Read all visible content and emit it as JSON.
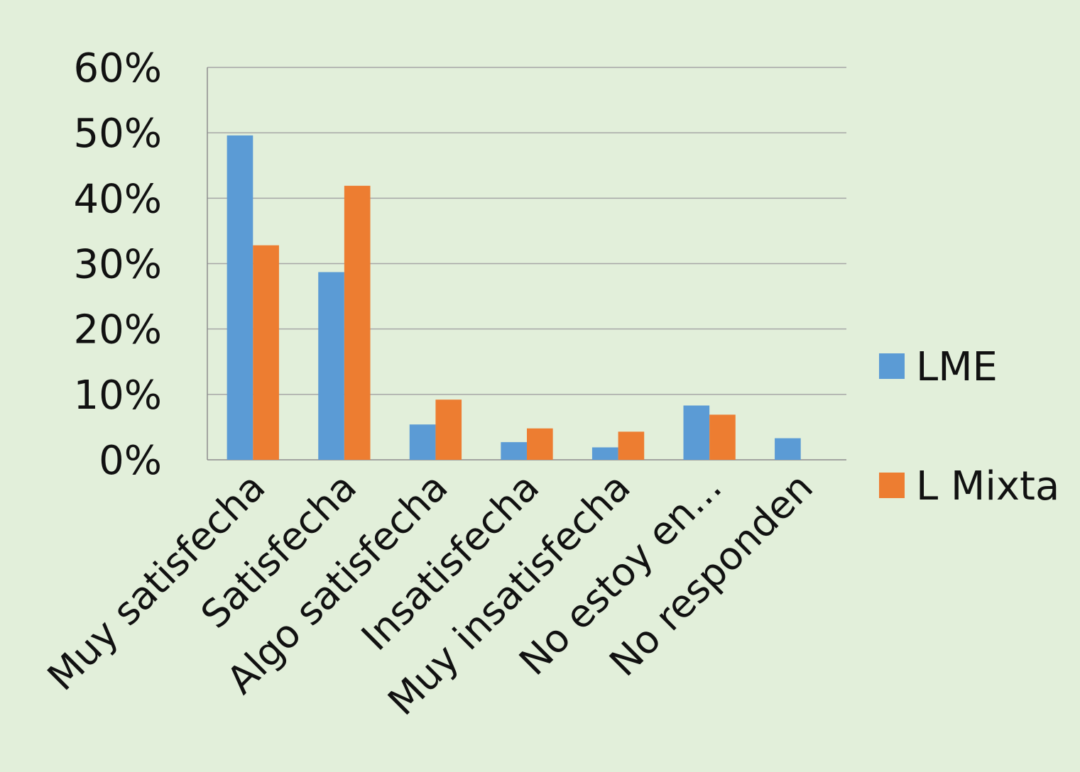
{
  "chart_data": {
    "type": "bar",
    "categories": [
      "Muy satisfecha",
      "Satisfecha",
      "Algo satisfecha",
      "Insatisfecha",
      "Muy insatisfecha",
      "No estoy en...",
      "No responden"
    ],
    "series": [
      {
        "name": "LME",
        "color": "#5b9bd5",
        "values": [
          49.6,
          28.7,
          5.4,
          2.7,
          1.9,
          8.3,
          3.3
        ]
      },
      {
        "name": "L Mixta",
        "color": "#ed7d31",
        "values": [
          32.8,
          41.9,
          9.2,
          4.8,
          4.3,
          6.9,
          null
        ]
      }
    ],
    "yticks": [
      "0%",
      "10%",
      "20%",
      "30%",
      "40%",
      "50%",
      "60%"
    ],
    "ylim": [
      0,
      60
    ],
    "legend_position": "right",
    "grid": true
  }
}
